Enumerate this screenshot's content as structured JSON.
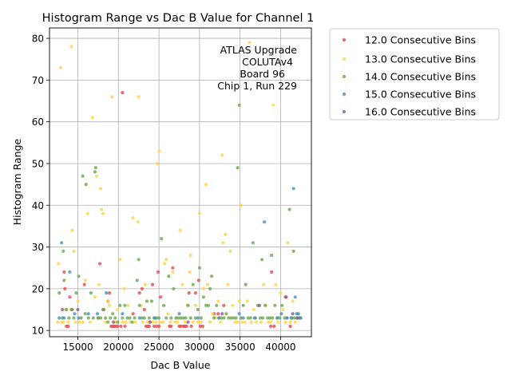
{
  "chart_data": {
    "type": "scatter",
    "title": "Histogram Range vs Dac B Value for Channel 1",
    "xlabel": "Dac B Value",
    "ylabel": "Histogram Range",
    "xlim": [
      11500,
      43800
    ],
    "ylim": [
      8.5,
      82.5
    ],
    "xticks": [
      15000,
      20000,
      25000,
      30000,
      35000,
      40000
    ],
    "xtick_labels": [
      "15000",
      "20000",
      "25000",
      "30000",
      "35000",
      "40000"
    ],
    "yticks": [
      10,
      20,
      30,
      40,
      50,
      60,
      70,
      80
    ],
    "ytick_labels": [
      "10",
      "20",
      "30",
      "40",
      "50",
      "60",
      "70",
      "80"
    ],
    "grid": true,
    "legend_position": "outside-top-right",
    "annotation": [
      "ATLAS Upgrade",
      "COLUTAv4",
      "Board 96",
      "Chip 1, Run 229"
    ],
    "series": [
      {
        "name": "12.0 Consecutive Bins",
        "color": "#e8474a",
        "points": [
          [
            13300,
            24
          ],
          [
            13400,
            20
          ],
          [
            13600,
            11
          ],
          [
            13800,
            11
          ],
          [
            14000,
            18
          ],
          [
            14300,
            15
          ],
          [
            15800,
            21
          ],
          [
            17500,
            13
          ],
          [
            17700,
            26
          ],
          [
            18200,
            15
          ],
          [
            18700,
            17
          ],
          [
            18900,
            19
          ],
          [
            19100,
            11
          ],
          [
            19300,
            11
          ],
          [
            19500,
            11
          ],
          [
            19700,
            11
          ],
          [
            19900,
            11
          ],
          [
            20300,
            11
          ],
          [
            20500,
            67
          ],
          [
            20800,
            11
          ],
          [
            21800,
            14
          ],
          [
            22600,
            19
          ],
          [
            22900,
            20
          ],
          [
            23200,
            15
          ],
          [
            23400,
            11
          ],
          [
            23600,
            11
          ],
          [
            23800,
            11
          ],
          [
            24200,
            21
          ],
          [
            24400,
            11
          ],
          [
            24700,
            11
          ],
          [
            24900,
            24
          ],
          [
            25000,
            11
          ],
          [
            25200,
            18
          ],
          [
            26300,
            11
          ],
          [
            26500,
            11
          ],
          [
            26700,
            25
          ],
          [
            27500,
            11
          ],
          [
            27700,
            11
          ],
          [
            28000,
            11
          ],
          [
            28200,
            11
          ],
          [
            28400,
            11
          ],
          [
            28700,
            19
          ],
          [
            29000,
            11
          ],
          [
            29500,
            19
          ],
          [
            29900,
            22
          ],
          [
            30100,
            11
          ],
          [
            30400,
            11
          ],
          [
            31800,
            14
          ],
          [
            32300,
            14
          ],
          [
            33000,
            16
          ],
          [
            38800,
            11
          ],
          [
            38900,
            24
          ],
          [
            39200,
            11
          ],
          [
            40600,
            18
          ],
          [
            41200,
            11
          ]
        ]
      },
      {
        "name": "13.0 Consecutive Bins",
        "color": "#ffd34d",
        "points": [
          [
            12500,
            12
          ],
          [
            12600,
            26
          ],
          [
            12900,
            73
          ],
          [
            13000,
            12
          ],
          [
            13200,
            12
          ],
          [
            13500,
            15
          ],
          [
            13800,
            12
          ],
          [
            14200,
            78
          ],
          [
            14300,
            34
          ],
          [
            14500,
            29
          ],
          [
            14700,
            12
          ],
          [
            15000,
            17
          ],
          [
            15200,
            12
          ],
          [
            15600,
            12
          ],
          [
            15900,
            22
          ],
          [
            16200,
            38
          ],
          [
            16500,
            12
          ],
          [
            16800,
            61
          ],
          [
            17100,
            18
          ],
          [
            17300,
            47
          ],
          [
            17600,
            21
          ],
          [
            17800,
            44
          ],
          [
            17900,
            39
          ],
          [
            18100,
            38
          ],
          [
            18400,
            12
          ],
          [
            18700,
            17
          ],
          [
            18900,
            16
          ],
          [
            19200,
            66
          ],
          [
            19400,
            12
          ],
          [
            19700,
            12
          ],
          [
            19900,
            15
          ],
          [
            20200,
            27
          ],
          [
            20500,
            12
          ],
          [
            20700,
            20
          ],
          [
            20900,
            12
          ],
          [
            21200,
            16
          ],
          [
            21500,
            12
          ],
          [
            21800,
            37
          ],
          [
            22100,
            12
          ],
          [
            22400,
            36
          ],
          [
            22500,
            66
          ],
          [
            22800,
            16
          ],
          [
            23000,
            12
          ],
          [
            23300,
            21
          ],
          [
            23600,
            12
          ],
          [
            23900,
            12
          ],
          [
            24200,
            12
          ],
          [
            24600,
            12
          ],
          [
            24800,
            50
          ],
          [
            25000,
            53
          ],
          [
            25200,
            12
          ],
          [
            25500,
            12
          ],
          [
            25700,
            26
          ],
          [
            25900,
            27
          ],
          [
            26100,
            14
          ],
          [
            26400,
            12
          ],
          [
            26700,
            24
          ],
          [
            27000,
            12
          ],
          [
            27300,
            12
          ],
          [
            27600,
            34
          ],
          [
            27900,
            21
          ],
          [
            28200,
            12
          ],
          [
            28500,
            16
          ],
          [
            28800,
            24
          ],
          [
            28900,
            28
          ],
          [
            29200,
            12
          ],
          [
            29500,
            16
          ],
          [
            29800,
            12
          ],
          [
            30000,
            38
          ],
          [
            30200,
            12
          ],
          [
            30500,
            20
          ],
          [
            30800,
            45
          ],
          [
            31000,
            21
          ],
          [
            31300,
            12
          ],
          [
            31600,
            14
          ],
          [
            32000,
            13
          ],
          [
            32300,
            17
          ],
          [
            32600,
            12
          ],
          [
            32800,
            52
          ],
          [
            32900,
            31
          ],
          [
            33200,
            33
          ],
          [
            33500,
            21
          ],
          [
            33800,
            29
          ],
          [
            34100,
            16
          ],
          [
            34400,
            12
          ],
          [
            34700,
            12
          ],
          [
            34900,
            17
          ],
          [
            35100,
            40
          ],
          [
            35300,
            12
          ],
          [
            35600,
            12
          ],
          [
            35900,
            17
          ],
          [
            36200,
            79
          ],
          [
            36400,
            12
          ],
          [
            36700,
            15
          ],
          [
            37000,
            12
          ],
          [
            37300,
            16
          ],
          [
            37600,
            12
          ],
          [
            37900,
            21
          ],
          [
            38200,
            16
          ],
          [
            38500,
            12
          ],
          [
            38800,
            12
          ],
          [
            39100,
            64
          ],
          [
            39400,
            21
          ],
          [
            39700,
            12
          ],
          [
            40000,
            19
          ],
          [
            40300,
            15
          ],
          [
            40600,
            12
          ],
          [
            40900,
            31
          ],
          [
            41200,
            12
          ],
          [
            41500,
            17
          ],
          [
            41800,
            12
          ]
        ]
      },
      {
        "name": "14.0 Consecutive Bins",
        "color": "#6aa84f",
        "points": [
          [
            12700,
            19
          ],
          [
            13100,
            13
          ],
          [
            13200,
            29
          ],
          [
            13300,
            22
          ],
          [
            13600,
            15
          ],
          [
            13900,
            13
          ],
          [
            14200,
            15
          ],
          [
            14500,
            13
          ],
          [
            14800,
            19
          ],
          [
            15100,
            23
          ],
          [
            15400,
            13
          ],
          [
            15600,
            47
          ],
          [
            15900,
            14
          ],
          [
            16000,
            45
          ],
          [
            16300,
            13
          ],
          [
            16600,
            19
          ],
          [
            16900,
            13
          ],
          [
            17100,
            48
          ],
          [
            17200,
            49
          ],
          [
            17500,
            13
          ],
          [
            17800,
            13
          ],
          [
            18100,
            15
          ],
          [
            18400,
            13
          ],
          [
            18700,
            12
          ],
          [
            19000,
            13
          ],
          [
            19300,
            14
          ],
          [
            19600,
            13
          ],
          [
            19900,
            12
          ],
          [
            20200,
            16
          ],
          [
            20500,
            13
          ],
          [
            20800,
            16
          ],
          [
            21100,
            13
          ],
          [
            21400,
            13
          ],
          [
            21700,
            12
          ],
          [
            22000,
            13
          ],
          [
            22300,
            22
          ],
          [
            22500,
            27
          ],
          [
            22600,
            16
          ],
          [
            22900,
            13
          ],
          [
            23200,
            13
          ],
          [
            23500,
            17
          ],
          [
            23800,
            13
          ],
          [
            24100,
            17
          ],
          [
            24400,
            13
          ],
          [
            24700,
            13
          ],
          [
            25000,
            13
          ],
          [
            25300,
            32
          ],
          [
            25600,
            16
          ],
          [
            25900,
            13
          ],
          [
            26200,
            23
          ],
          [
            26500,
            13
          ],
          [
            26800,
            20
          ],
          [
            27100,
            13
          ],
          [
            27400,
            13
          ],
          [
            27700,
            13
          ],
          [
            28000,
            13
          ],
          [
            28300,
            13
          ],
          [
            28600,
            16
          ],
          [
            28900,
            13
          ],
          [
            29200,
            21
          ],
          [
            29500,
            13
          ],
          [
            29800,
            15
          ],
          [
            30000,
            25
          ],
          [
            30200,
            13
          ],
          [
            30500,
            18
          ],
          [
            30800,
            16
          ],
          [
            31100,
            16
          ],
          [
            31300,
            20
          ],
          [
            31500,
            23
          ],
          [
            31800,
            13
          ],
          [
            32100,
            16
          ],
          [
            32400,
            13
          ],
          [
            32700,
            13
          ],
          [
            33000,
            13
          ],
          [
            33300,
            14
          ],
          [
            33600,
            13
          ],
          [
            33900,
            13
          ],
          [
            34200,
            13
          ],
          [
            34500,
            13
          ],
          [
            34700,
            49
          ],
          [
            34900,
            64
          ],
          [
            35100,
            13
          ],
          [
            35400,
            16
          ],
          [
            35700,
            21
          ],
          [
            36000,
            13
          ],
          [
            36300,
            13
          ],
          [
            36600,
            31
          ],
          [
            36900,
            13
          ],
          [
            37200,
            16
          ],
          [
            37500,
            13
          ],
          [
            37700,
            27
          ],
          [
            37800,
            13
          ],
          [
            38100,
            16
          ],
          [
            38400,
            13
          ],
          [
            38700,
            13
          ],
          [
            38900,
            28
          ],
          [
            39000,
            13
          ],
          [
            39300,
            16
          ],
          [
            39600,
            13
          ],
          [
            39900,
            13
          ],
          [
            40200,
            16
          ],
          [
            40500,
            13
          ],
          [
            40800,
            13
          ],
          [
            41100,
            39
          ],
          [
            41400,
            13
          ],
          [
            41600,
            29
          ],
          [
            41700,
            13
          ],
          [
            42000,
            13
          ],
          [
            42300,
            13
          ],
          [
            42500,
            13
          ]
        ]
      },
      {
        "name": "15.0 Consecutive Bins",
        "color": "#4a8fc4",
        "points": [
          [
            12700,
            13
          ],
          [
            13000,
            31
          ],
          [
            13300,
            13
          ],
          [
            14000,
            24
          ],
          [
            14600,
            14
          ],
          [
            15100,
            13
          ],
          [
            16300,
            14
          ],
          [
            17400,
            14
          ],
          [
            18500,
            19
          ],
          [
            20500,
            14
          ],
          [
            22600,
            13
          ],
          [
            24500,
            13
          ],
          [
            27500,
            14
          ],
          [
            29800,
            13
          ],
          [
            32400,
            13
          ],
          [
            34900,
            14
          ],
          [
            35400,
            13
          ],
          [
            36800,
            13
          ],
          [
            38000,
            36
          ],
          [
            39600,
            13
          ],
          [
            40100,
            14
          ],
          [
            40800,
            13
          ],
          [
            41300,
            13
          ],
          [
            41600,
            44
          ],
          [
            41800,
            18
          ],
          [
            42000,
            14
          ],
          [
            42200,
            14
          ],
          [
            42400,
            13
          ]
        ]
      },
      {
        "name": "16.0 Consecutive Bins",
        "color": "#8e5a8e",
        "points": [
          [
            13100,
            15
          ],
          [
            15000,
            15
          ],
          [
            19400,
            12
          ],
          [
            23900,
            12
          ],
          [
            28600,
            12
          ],
          [
            32800,
            14
          ],
          [
            37400,
            16
          ],
          [
            40700,
            18
          ],
          [
            41500,
            14
          ],
          [
            42100,
            13
          ]
        ]
      }
    ]
  }
}
